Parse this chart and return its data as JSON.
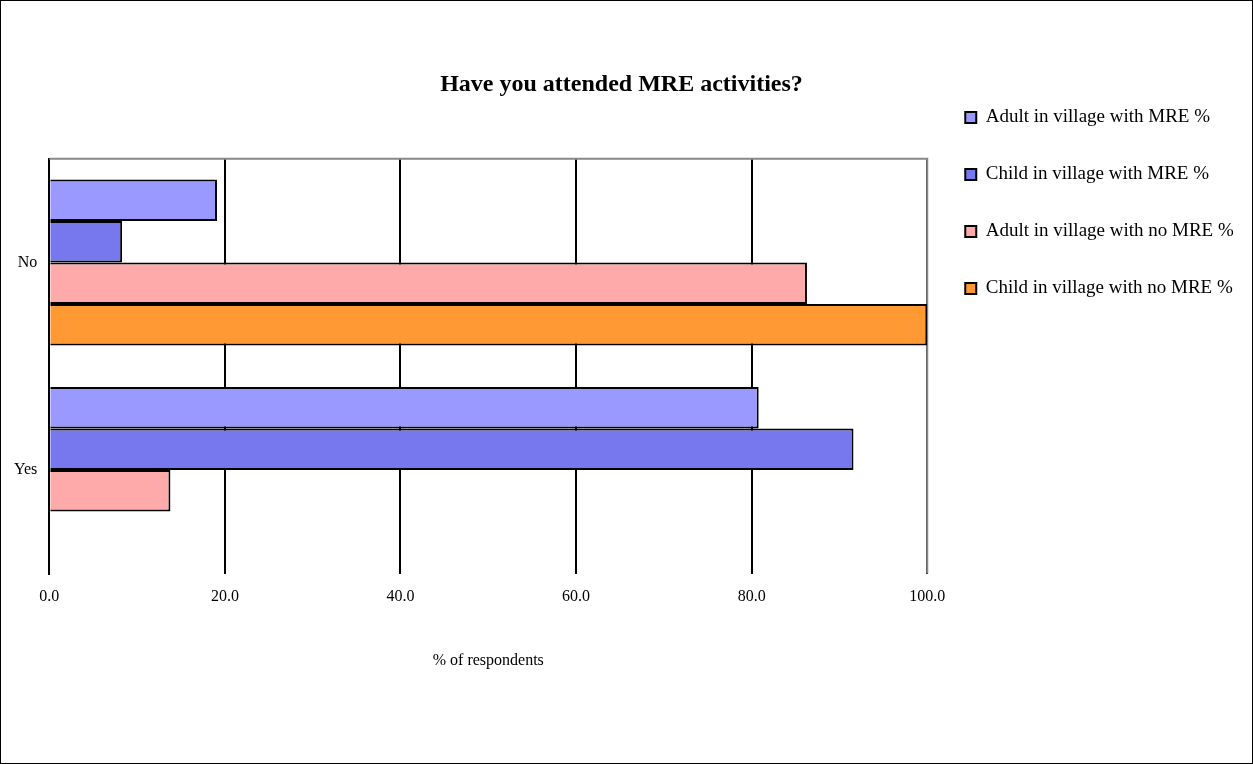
{
  "chart_data": {
    "type": "bar",
    "orientation": "horizontal",
    "title": "Have you attended MRE activities?",
    "xlabel": "% of respondents",
    "categories": [
      "No",
      "Yes"
    ],
    "series": [
      {
        "name": "Adult in village with MRE %",
        "color": "#9999ff",
        "values": [
          19.1,
          80.8
        ]
      },
      {
        "name": "Child in village with MRE %",
        "color": "#7777ee",
        "values": [
          8.3,
          91.6
        ]
      },
      {
        "name": "Adult in village with no MRE %",
        "color": "#ffaaaa",
        "values": [
          86.3,
          13.8
        ]
      },
      {
        "name": "Child in village with no MRE %",
        "color": "#ff9933",
        "values": [
          100,
          0
        ]
      }
    ],
    "xlim": [
      0,
      100
    ],
    "xticks": [
      {
        "value": 0,
        "label": "0.0"
      },
      {
        "value": 20,
        "label": "20.0"
      },
      {
        "value": 40,
        "label": "40.0"
      },
      {
        "value": 60,
        "label": "60.0"
      },
      {
        "value": 80,
        "label": "80.0"
      },
      {
        "value": 100,
        "label": "100.0"
      }
    ],
    "grid": "x",
    "legend": "right"
  }
}
